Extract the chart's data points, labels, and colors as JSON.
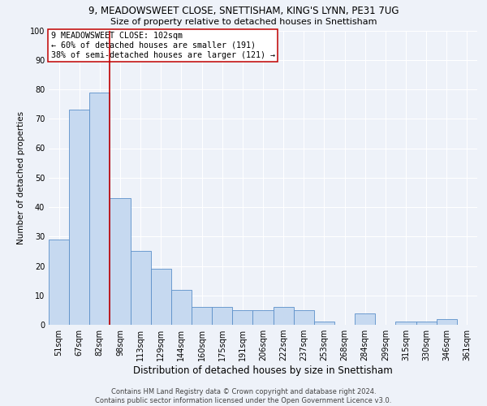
{
  "title1": "9, MEADOWSWEET CLOSE, SNETTISHAM, KING'S LYNN, PE31 7UG",
  "title2": "Size of property relative to detached houses in Snettisham",
  "xlabel": "Distribution of detached houses by size in Snettisham",
  "ylabel": "Number of detached properties",
  "categories": [
    "51sqm",
    "67sqm",
    "82sqm",
    "98sqm",
    "113sqm",
    "129sqm",
    "144sqm",
    "160sqm",
    "175sqm",
    "191sqm",
    "206sqm",
    "222sqm",
    "237sqm",
    "253sqm",
    "268sqm",
    "284sqm",
    "299sqm",
    "315sqm",
    "330sqm",
    "346sqm",
    "361sqm"
  ],
  "values": [
    29,
    73,
    79,
    43,
    25,
    19,
    12,
    6,
    6,
    5,
    5,
    6,
    5,
    1,
    0,
    4,
    0,
    1,
    1,
    2,
    0
  ],
  "bar_color": "#c6d9f0",
  "bar_edge_color": "#5b8fc9",
  "vline_x": 2.5,
  "vline_color": "#c00000",
  "annotation_text": "9 MEADOWSWEET CLOSE: 102sqm\n← 60% of detached houses are smaller (191)\n38% of semi-detached houses are larger (121) →",
  "annotation_box_color": "#ffffff",
  "annotation_box_edge": "#c00000",
  "ylim": [
    0,
    100
  ],
  "yticks": [
    0,
    10,
    20,
    30,
    40,
    50,
    60,
    70,
    80,
    90,
    100
  ],
  "footer": "Contains HM Land Registry data © Crown copyright and database right 2024.\nContains public sector information licensed under the Open Government Licence v3.0.",
  "bg_color": "#eef2f9",
  "grid_color": "#ffffff",
  "title1_fontsize": 8.5,
  "title2_fontsize": 8.0,
  "xlabel_fontsize": 8.5,
  "ylabel_fontsize": 7.5,
  "tick_fontsize": 7.0,
  "annotation_fontsize": 7.2,
  "footer_fontsize": 6.0
}
